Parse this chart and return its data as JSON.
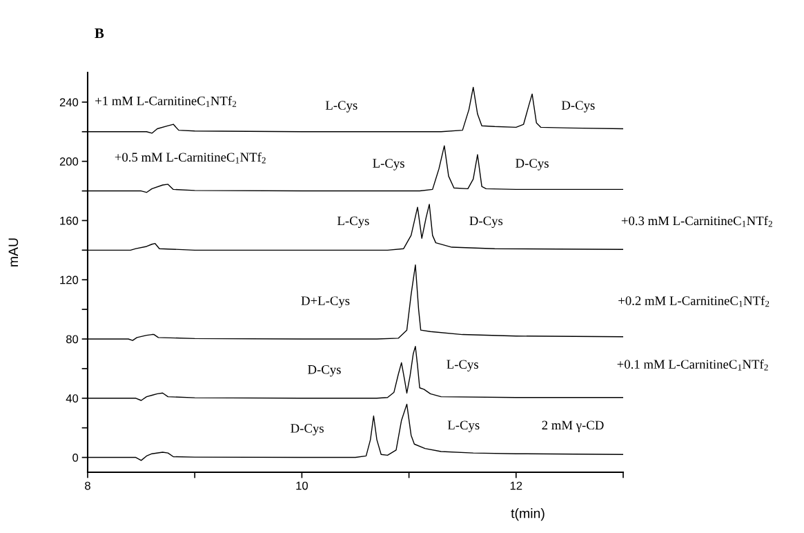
{
  "chart_data": {
    "type": "line",
    "title": "B",
    "xlabel": "t(min)",
    "ylabel": "mAU",
    "xlim": [
      8,
      13
    ],
    "xticks": [
      8,
      {
        "value": 9,
        "label": null
      },
      10,
      {
        "value": 11,
        "label": null
      },
      12,
      {
        "value": 13,
        "label": null
      }
    ],
    "ylim": [
      -10,
      260
    ],
    "yticks": [
      0,
      {
        "value": 20,
        "label": null
      },
      40,
      {
        "value": 60,
        "label": null
      },
      80,
      {
        "value": 100,
        "label": null
      },
      120,
      {
        "value": 140,
        "label": null
      },
      160,
      {
        "value": 180,
        "label": null
      },
      200,
      {
        "value": 220,
        "label": null
      },
      240
    ],
    "grid": false,
    "marker": "none",
    "line_style": "solid",
    "series": [
      {
        "color": "#000000",
        "x": [
          8,
          8.45,
          8.5,
          8.55,
          8.6,
          8.7,
          8.75,
          8.8,
          9,
          10,
          10.5,
          10.6,
          10.64,
          10.67,
          10.7,
          10.74,
          10.8,
          10.88,
          10.93,
          10.98,
          11.02,
          11.05,
          11.15,
          11.3,
          11.6,
          12,
          13
        ],
        "values": [
          0,
          0,
          -2,
          1,
          2.5,
          3.5,
          3,
          0.5,
          0.2,
          0,
          0,
          1,
          12,
          28,
          12,
          2,
          1.5,
          5,
          25,
          36,
          15,
          9,
          6,
          4,
          3,
          2.5,
          2
        ]
      },
      {
        "color": "#000000",
        "x": [
          8,
          8.45,
          8.5,
          8.55,
          8.6,
          8.65,
          8.7,
          8.75,
          9,
          10,
          10.7,
          10.8,
          10.86,
          10.9,
          10.93,
          10.96,
          10.98,
          11.01,
          11.04,
          11.06,
          11.08,
          11.1,
          11.14,
          11.2,
          11.3,
          12,
          13
        ],
        "values": [
          40,
          40,
          38.5,
          41,
          42,
          43,
          43.5,
          41,
          40.3,
          40,
          40,
          40.5,
          44,
          56,
          64,
          52,
          43.5,
          55,
          70,
          75,
          62,
          47,
          46,
          43,
          41,
          40.5,
          40.5
        ]
      },
      {
        "color": "#000000",
        "x": [
          8,
          8.38,
          8.42,
          8.46,
          8.55,
          8.6,
          8.62,
          8.66,
          9,
          10,
          10.7,
          10.9,
          10.98,
          11.02,
          11.06,
          11.09,
          11.11,
          11.2,
          11.5,
          12,
          13
        ],
        "values": [
          80,
          80,
          79,
          81,
          82.5,
          83,
          83,
          81,
          80.3,
          80,
          80,
          80.5,
          86,
          110,
          130,
          100,
          86,
          85,
          83,
          82,
          81.5
        ]
      },
      {
        "color": "#000000",
        "x": [
          8,
          8.4,
          8.45,
          8.55,
          8.6,
          8.63,
          8.67,
          9,
          10,
          10.8,
          10.95,
          11.02,
          11.08,
          11.12,
          11.16,
          11.19,
          11.22,
          11.25,
          11.4,
          11.8,
          13
        ],
        "values": [
          140,
          140,
          141,
          142.5,
          144,
          144.5,
          141,
          140,
          140,
          140,
          141,
          150,
          169,
          148,
          162,
          171,
          150,
          145,
          142,
          141,
          140.5
        ]
      },
      {
        "color": "#000000",
        "x": [
          8,
          8.5,
          8.55,
          8.6,
          8.7,
          8.75,
          8.8,
          9,
          10,
          11.1,
          11.22,
          11.28,
          11.33,
          11.37,
          11.42,
          11.55,
          11.6,
          11.64,
          11.68,
          11.72,
          12,
          13
        ],
        "values": [
          180,
          180,
          179,
          181.5,
          184,
          184.5,
          181,
          180.3,
          180,
          180,
          181,
          195,
          210.5,
          190,
          182,
          181.5,
          188,
          204.5,
          183,
          181.5,
          181,
          181
        ]
      },
      {
        "color": "#000000",
        "x": [
          8,
          8.55,
          8.6,
          8.65,
          8.75,
          8.8,
          8.85,
          9,
          10,
          11.3,
          11.5,
          11.56,
          11.6,
          11.64,
          11.68,
          11.8,
          12,
          12.07,
          12.12,
          12.15,
          12.19,
          12.23,
          12.5,
          13
        ],
        "values": [
          220,
          220,
          219,
          222,
          224,
          225,
          221,
          220.5,
          220,
          220,
          221,
          235,
          250,
          232,
          224,
          223.5,
          223,
          225,
          238,
          245.5,
          226,
          223,
          222.5,
          222
        ]
      }
    ],
    "annotations": [
      "+1 mM L-CarnitineC$_{1}$NTf$_{2}$",
      "L-Cys",
      "D-Cys",
      "+0.5 mM L-CarnitineC$_{1}$NTf$_{2}$",
      "L-Cys",
      "D-Cys",
      "L-Cys",
      "D-Cys",
      "+0.3 mM L-CarnitineC$_{1}$NTf$_{2}$",
      "D+L-Cys",
      "+0.2 mM L-CarnitineC$_{1}$NTf$_{2}$",
      "D-Cys",
      "L-Cys",
      "+0.1 mM L-CarnitineC$_{1}$NTf$_{2}$",
      "D-Cys",
      "L-Cys",
      "2 mM γ-CD"
    ]
  }
}
